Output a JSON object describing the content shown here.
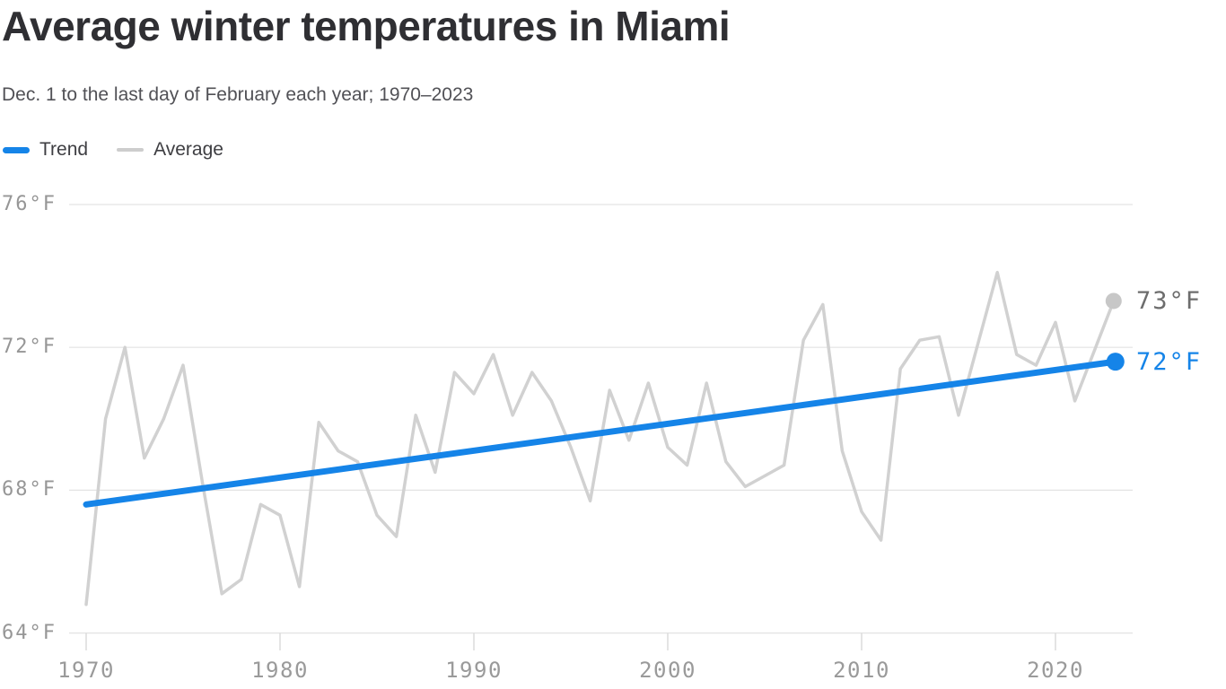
{
  "header": {
    "title": "Average winter temperatures in Miami",
    "subtitle": "Dec. 1 to the last day of February each year; 1970–2023"
  },
  "legend": {
    "position": "top-left",
    "items": [
      {
        "label": "Trend",
        "color": "#1584e8",
        "swatch": "thick-line"
      },
      {
        "label": "Average",
        "color": "#cdcdcd",
        "swatch": "thin-line"
      }
    ]
  },
  "chart_data": {
    "type": "line",
    "title": "Average winter temperatures in Miami",
    "subtitle": "Dec. 1 to the last day of February each year; 1970–2023",
    "xlabel": "",
    "ylabel": "",
    "unit": "°F",
    "ylim": [
      64,
      76.5
    ],
    "xlim": [
      1970,
      2023
    ],
    "grid": "horizontal",
    "legend_position": "top-left",
    "x": [
      1970,
      1971,
      1972,
      1973,
      1974,
      1975,
      1976,
      1977,
      1978,
      1979,
      1980,
      1981,
      1982,
      1983,
      1984,
      1985,
      1986,
      1987,
      1988,
      1989,
      1990,
      1991,
      1992,
      1993,
      1994,
      1995,
      1996,
      1997,
      1998,
      1999,
      2000,
      2001,
      2002,
      2003,
      2004,
      2005,
      2006,
      2007,
      2008,
      2009,
      2010,
      2011,
      2012,
      2013,
      2014,
      2015,
      2016,
      2017,
      2018,
      2019,
      2020,
      2021,
      2022,
      2023
    ],
    "series": [
      {
        "name": "Average",
        "type": "polyline",
        "color": "#d1d1d1",
        "values": [
          64.8,
          70.0,
          72.0,
          68.9,
          70.0,
          71.5,
          68.2,
          65.1,
          65.5,
          67.6,
          67.3,
          65.3,
          69.9,
          69.1,
          68.8,
          67.3,
          66.7,
          70.1,
          68.5,
          71.3,
          70.7,
          71.8,
          70.1,
          71.3,
          70.5,
          69.2,
          67.7,
          70.8,
          69.4,
          71.0,
          69.2,
          68.7,
          71.0,
          68.8,
          68.1,
          68.4,
          68.7,
          72.2,
          73.2,
          69.1,
          67.4,
          66.6,
          71.4,
          72.2,
          72.3,
          70.1,
          72.1,
          74.1,
          71.8,
          71.5,
          72.7,
          70.5,
          71.9,
          73.3
        ]
      },
      {
        "name": "Trend",
        "type": "straight-line",
        "color": "#1584e8",
        "points": [
          {
            "x": 1970,
            "y": 67.6
          },
          {
            "x": 2023,
            "y": 71.6
          }
        ]
      }
    ],
    "yticks": {
      "values": [
        76,
        72,
        68,
        64
      ],
      "labels": [
        "76°F",
        "72°F",
        "68°F",
        "64°F"
      ]
    },
    "xticks": {
      "values": [
        1970,
        1980,
        1990,
        2000,
        2010,
        2020
      ],
      "labels": [
        "1970",
        "1980",
        "1990",
        "2000",
        "2010",
        "2020"
      ]
    },
    "end_labels": {
      "average": {
        "text": "73°F",
        "value": 73.3,
        "color": "#6d6d6d",
        "dot_color": "#c7c7c7"
      },
      "trend": {
        "text": "72°F",
        "value": 71.6,
        "color": "#1584e8",
        "dot_color": "#1584e8"
      }
    }
  },
  "colors": {
    "trend_blue": "#1584e8",
    "average_gray": "#d1d1d1",
    "gridline": "#e3e3e3",
    "tick": "#dbdbdb",
    "axis_text": "#969696",
    "title_text": "#2f2f33"
  }
}
